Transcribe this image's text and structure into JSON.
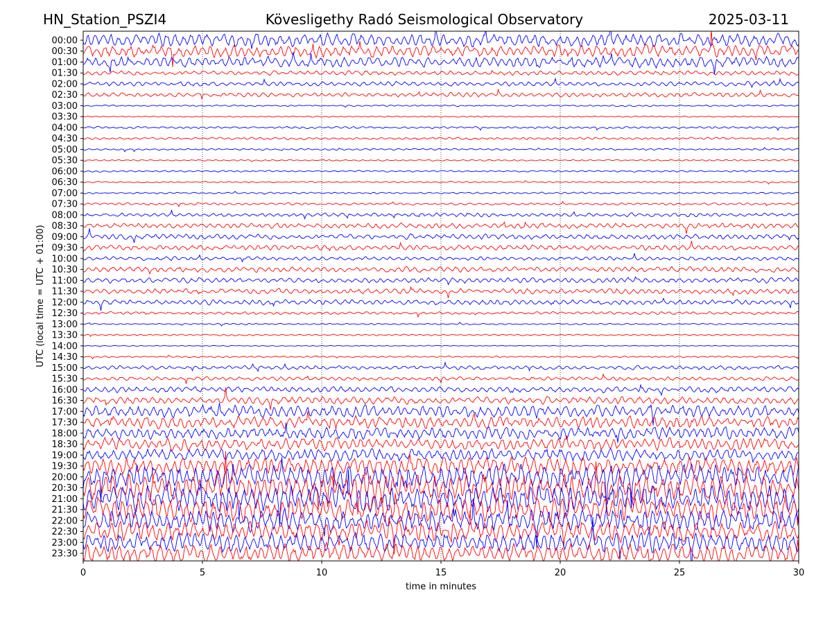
{
  "header": {
    "station": "HN_Station_PSZI4",
    "observatory": "Kövesligethy Radó Seismological Observatory",
    "date": "2025-03-11"
  },
  "chart_data": {
    "type": "line",
    "title": "Kövesligethy Radó Seismological Observatory",
    "xlabel": "time in minutes",
    "ylabel": "UTC (local time = UTC + 01:00)",
    "xlim": [
      0,
      30
    ],
    "xticks": [
      "0",
      "5",
      "10",
      "15",
      "20",
      "25",
      "30"
    ],
    "grid": "vertical dotted at 5-minute intervals",
    "colors": [
      "#0000ff",
      "#ff0000"
    ],
    "rows": [
      "00:00",
      "00:30",
      "01:00",
      "01:30",
      "02:00",
      "02:30",
      "03:00",
      "03:30",
      "04:00",
      "04:30",
      "05:00",
      "05:30",
      "06:00",
      "06:30",
      "07:00",
      "07:30",
      "08:00",
      "08:30",
      "09:00",
      "09:30",
      "10:00",
      "10:30",
      "11:00",
      "11:30",
      "12:00",
      "12:30",
      "13:00",
      "13:30",
      "14:00",
      "14:30",
      "15:00",
      "15:30",
      "16:00",
      "16:30",
      "17:00",
      "17:30",
      "18:00",
      "18:30",
      "19:00",
      "19:30",
      "20:00",
      "20:30",
      "21:00",
      "21:30",
      "22:00",
      "22:30",
      "23:00",
      "23:30"
    ],
    "relative_amplitude": [
      0.9,
      0.8,
      0.7,
      0.3,
      0.3,
      0.3,
      0.1,
      0.08,
      0.15,
      0.15,
      0.12,
      0.1,
      0.12,
      0.1,
      0.12,
      0.15,
      0.25,
      0.35,
      0.35,
      0.35,
      0.25,
      0.35,
      0.35,
      0.35,
      0.35,
      0.2,
      0.1,
      0.1,
      0.05,
      0.1,
      0.25,
      0.25,
      0.4,
      0.5,
      0.8,
      0.8,
      0.8,
      0.8,
      0.8,
      1.2,
      1.6,
      1.8,
      1.8,
      1.6,
      1.5,
      1.3,
      1.3,
      1.2
    ]
  }
}
